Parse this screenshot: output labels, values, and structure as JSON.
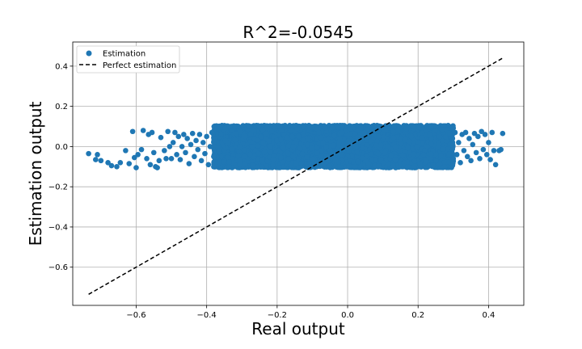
{
  "chart_data": {
    "type": "scatter",
    "title": "R^2=-0.0545",
    "xlabel": "Real output",
    "ylabel": "Estimation output",
    "xlim": [
      -0.78,
      0.5
    ],
    "ylim": [
      -0.79,
      0.52
    ],
    "xticks": [
      -0.6,
      -0.4,
      -0.2,
      0.0,
      0.2,
      0.4
    ],
    "xtick_labels": [
      "−0.6",
      "−0.4",
      "−0.2",
      "0.0",
      "0.2",
      "0.4"
    ],
    "yticks": [
      -0.6,
      -0.4,
      -0.2,
      0.0,
      0.2,
      0.4
    ],
    "ytick_labels": [
      "−0.6",
      "−0.4",
      "−0.2",
      "0.0",
      "0.2",
      "0.4"
    ],
    "grid": true,
    "legend_position": "top-left",
    "series": [
      {
        "name": "Estimation",
        "kind": "scatter",
        "color": "#1f77b4",
        "points": [
          [
            -0.735,
            -0.035
          ],
          [
            -0.715,
            -0.065
          ],
          [
            -0.71,
            -0.04
          ],
          [
            -0.7,
            -0.07
          ],
          [
            -0.68,
            -0.08
          ],
          [
            -0.67,
            -0.095
          ],
          [
            -0.655,
            -0.1
          ],
          [
            -0.645,
            -0.08
          ],
          [
            -0.63,
            -0.02
          ],
          [
            -0.62,
            -0.085
          ],
          [
            -0.61,
            0.075
          ],
          [
            -0.605,
            -0.055
          ],
          [
            -0.6,
            -0.105
          ],
          [
            -0.595,
            -0.04
          ],
          [
            -0.585,
            -0.015
          ],
          [
            -0.58,
            0.08
          ],
          [
            -0.57,
            -0.06
          ],
          [
            -0.565,
            0.06
          ],
          [
            -0.56,
            -0.09
          ],
          [
            -0.555,
            0.07
          ],
          [
            -0.55,
            -0.03
          ],
          [
            -0.545,
            -0.1
          ],
          [
            -0.54,
            -0.105
          ],
          [
            -0.535,
            -0.07
          ],
          [
            -0.53,
            0.045
          ],
          [
            -0.52,
            -0.02
          ],
          [
            -0.515,
            -0.06
          ],
          [
            -0.51,
            0.075
          ],
          [
            -0.505,
            0.0
          ],
          [
            -0.5,
            -0.06
          ],
          [
            -0.495,
            0.02
          ],
          [
            -0.49,
            0.07
          ],
          [
            -0.485,
            -0.04
          ],
          [
            -0.48,
            0.05
          ],
          [
            -0.475,
            -0.065
          ],
          [
            -0.47,
            0.0
          ],
          [
            -0.465,
            0.06
          ],
          [
            -0.46,
            -0.03
          ],
          [
            -0.455,
            0.04
          ],
          [
            -0.45,
            -0.085
          ],
          [
            -0.445,
            0.01
          ],
          [
            -0.44,
            0.065
          ],
          [
            -0.435,
            -0.05
          ],
          [
            -0.43,
            0.03
          ],
          [
            -0.425,
            -0.015
          ],
          [
            -0.42,
            0.06
          ],
          [
            -0.415,
            -0.07
          ],
          [
            -0.41,
            0.02
          ],
          [
            -0.405,
            -0.035
          ],
          [
            -0.4,
            0.05
          ],
          [
            -0.395,
            -0.09
          ],
          [
            -0.39,
            0.0
          ],
          [
            -0.385,
            0.07
          ],
          [
            -0.38,
            -0.05
          ],
          [
            0.29,
            0.065
          ],
          [
            0.3,
            -0.06
          ],
          [
            0.305,
            0.07
          ],
          [
            0.31,
            -0.04
          ],
          [
            0.315,
            0.02
          ],
          [
            0.32,
            -0.08
          ],
          [
            0.325,
            0.06
          ],
          [
            0.33,
            -0.02
          ],
          [
            0.335,
            0.07
          ],
          [
            0.34,
            -0.05
          ],
          [
            0.345,
            0.04
          ],
          [
            0.35,
            -0.07
          ],
          [
            0.355,
            0.01
          ],
          [
            0.36,
            0.065
          ],
          [
            0.365,
            -0.03
          ],
          [
            0.37,
            0.05
          ],
          [
            0.375,
            -0.06
          ],
          [
            0.38,
            0.075
          ],
          [
            0.385,
            -0.015
          ],
          [
            0.39,
            0.06
          ],
          [
            0.395,
            -0.04
          ],
          [
            0.4,
            0.02
          ],
          [
            0.405,
            -0.065
          ],
          [
            0.41,
            0.07
          ],
          [
            0.415,
            -0.02
          ],
          [
            0.42,
            -0.09
          ],
          [
            0.43,
            -0.02
          ],
          [
            0.435,
            -0.015
          ],
          [
            0.44,
            0.065
          ]
        ]
      },
      {
        "name": "Perfect estimation",
        "kind": "line",
        "style": "dashed",
        "color": "#000000",
        "x": [
          -0.735,
          0.44
        ],
        "y": [
          -0.735,
          0.44
        ]
      }
    ],
    "dense_cloud": {
      "x_range": [
        -0.38,
        0.3
      ],
      "y_range": [
        -0.105,
        0.105
      ],
      "count": 7000
    }
  }
}
